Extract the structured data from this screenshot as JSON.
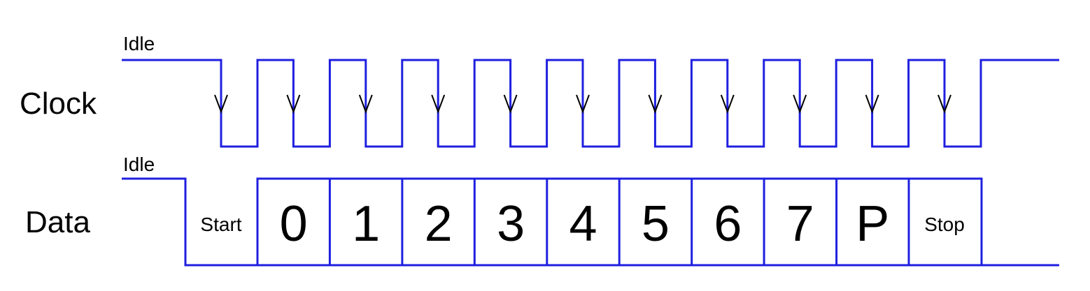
{
  "colors": {
    "wave": "#1f1fe0",
    "arrow": "#000000",
    "text": "#000000"
  },
  "clock": {
    "label": "Clock",
    "idle_label": "Idle",
    "falling_edges": 11
  },
  "data": {
    "label": "Data",
    "idle_label": "Idle",
    "start_label": "Start",
    "bits": [
      "0",
      "1",
      "2",
      "3",
      "4",
      "5",
      "6",
      "7",
      "P"
    ],
    "stop_label": "Stop"
  }
}
